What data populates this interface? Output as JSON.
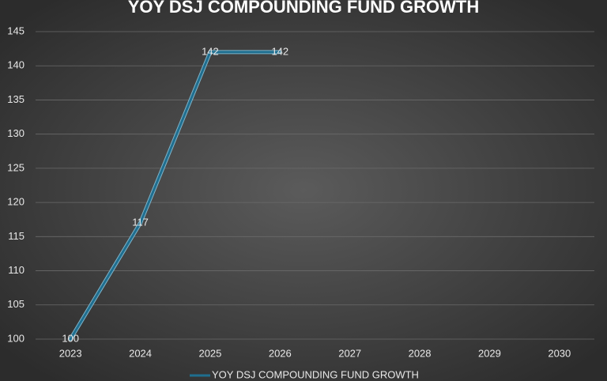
{
  "chart_data": {
    "type": "line",
    "title": "YOY DSJ COMPOUNDING FUND GROWTH",
    "categories": [
      "2023",
      "2024",
      "2025",
      "2026",
      "2027",
      "2028",
      "2029",
      "2030"
    ],
    "series": [
      {
        "name": "YOY DSJ COMPOUNDING FUND GROWTH",
        "color": "#1f6e8f",
        "values": [
          100,
          117,
          142,
          142,
          null,
          null,
          null,
          null
        ]
      }
    ],
    "ylim": [
      100,
      145
    ],
    "yticks": [
      100,
      105,
      110,
      115,
      120,
      125,
      130,
      135,
      140,
      145
    ],
    "grid": true,
    "legend": "bottom",
    "data_labels": true
  }
}
